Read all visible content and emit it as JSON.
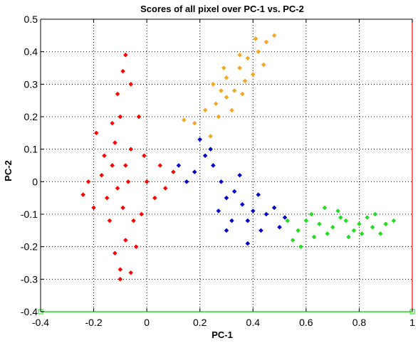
{
  "chart_data": {
    "type": "scatter",
    "title": "Scores of all pixel over PC-1 vs. PC-2",
    "xlabel": "PC-1",
    "ylabel": "PC-2",
    "xlim": [
      -0.4,
      1.0
    ],
    "ylim": [
      -0.4,
      0.5
    ],
    "x_ticks": [
      -0.4,
      -0.2,
      0,
      0.2,
      0.4,
      0.6,
      0.8,
      1
    ],
    "x_tick_labels": [
      "-0.4",
      "-0.2",
      "0",
      "0.2",
      "0.4",
      "0.6",
      "0.8",
      "1"
    ],
    "y_ticks": [
      -0.4,
      -0.3,
      -0.2,
      -0.1,
      0,
      0.1,
      0.2,
      0.3,
      0.4,
      0.5
    ],
    "y_tick_labels": [
      "-0.4",
      "-0.3",
      "-0.2",
      "-0.1",
      "0",
      "0.1",
      "0.2",
      "0.3",
      "0.4",
      "0.5"
    ],
    "grid": true,
    "marker": "diamond",
    "series": [
      {
        "color": "#ff0000",
        "points": [
          [
            -0.13,
            0.05
          ],
          [
            -0.11,
            -0.02
          ],
          [
            -0.09,
            -0.08
          ],
          [
            -0.12,
            0.12
          ],
          [
            -0.1,
            0.2
          ],
          [
            -0.14,
            -0.12
          ],
          [
            -0.08,
            -0.18
          ],
          [
            -0.16,
            0.08
          ],
          [
            -0.07,
            0.0
          ],
          [
            -0.11,
            0.27
          ],
          [
            -0.09,
            0.34
          ],
          [
            -0.12,
            -0.22
          ],
          [
            -0.1,
            -0.27
          ],
          [
            -0.15,
            -0.05
          ],
          [
            -0.06,
            0.1
          ],
          [
            -0.13,
            0.18
          ],
          [
            -0.08,
            0.05
          ],
          [
            -0.05,
            -0.12
          ],
          [
            -0.17,
            0.02
          ],
          [
            -0.2,
            -0.08
          ],
          [
            -0.22,
            0.0
          ],
          [
            -0.24,
            -0.04
          ],
          [
            -0.19,
            0.15
          ],
          [
            -0.04,
            -0.2
          ],
          [
            -0.02,
            -0.1
          ],
          [
            0.0,
            0.0
          ],
          [
            -0.01,
            0.08
          ],
          [
            0.03,
            -0.05
          ],
          [
            0.05,
            0.05
          ],
          [
            0.07,
            -0.02
          ],
          [
            0.1,
            0.03
          ],
          [
            -0.08,
            0.39
          ],
          [
            -0.06,
            0.3
          ],
          [
            -0.03,
            0.2
          ],
          [
            -0.1,
            -0.3
          ],
          [
            -0.06,
            -0.28
          ]
        ]
      },
      {
        "color": "#f5a623",
        "points": [
          [
            0.3,
            0.32
          ],
          [
            0.35,
            0.35
          ],
          [
            0.38,
            0.38
          ],
          [
            0.42,
            0.4
          ],
          [
            0.45,
            0.43
          ],
          [
            0.28,
            0.28
          ],
          [
            0.25,
            0.3
          ],
          [
            0.33,
            0.28
          ],
          [
            0.4,
            0.33
          ],
          [
            0.48,
            0.45
          ],
          [
            0.32,
            0.22
          ],
          [
            0.27,
            0.2
          ],
          [
            0.22,
            0.22
          ],
          [
            0.18,
            0.18
          ],
          [
            0.14,
            0.19
          ],
          [
            0.37,
            0.31
          ],
          [
            0.44,
            0.36
          ],
          [
            0.3,
            0.26
          ],
          [
            0.24,
            0.14
          ],
          [
            0.35,
            0.39
          ],
          [
            0.41,
            0.44
          ],
          [
            0.29,
            0.35
          ],
          [
            0.36,
            0.27
          ],
          [
            0.26,
            0.24
          ]
        ]
      },
      {
        "color": "#0000cc",
        "points": [
          [
            0.3,
            -0.05
          ],
          [
            0.33,
            -0.03
          ],
          [
            0.36,
            -0.07
          ],
          [
            0.28,
            0.0
          ],
          [
            0.25,
            0.05
          ],
          [
            0.4,
            -0.09
          ],
          [
            0.45,
            -0.1
          ],
          [
            0.38,
            -0.12
          ],
          [
            0.22,
            0.08
          ],
          [
            0.2,
            0.13
          ],
          [
            0.27,
            -0.09
          ],
          [
            0.32,
            -0.12
          ],
          [
            0.43,
            -0.15
          ],
          [
            0.48,
            -0.08
          ],
          [
            0.52,
            -0.11
          ],
          [
            0.18,
            0.03
          ],
          [
            0.15,
            0.0
          ],
          [
            0.35,
            0.02
          ],
          [
            0.42,
            -0.04
          ],
          [
            0.3,
            -0.15
          ],
          [
            0.38,
            -0.19
          ],
          [
            0.24,
            0.1
          ],
          [
            0.12,
            0.05
          ],
          [
            0.5,
            -0.14
          ]
        ]
      },
      {
        "color": "#22dd22",
        "points": [
          [
            0.6,
            -0.12
          ],
          [
            0.65,
            -0.13
          ],
          [
            0.7,
            -0.14
          ],
          [
            0.75,
            -0.12
          ],
          [
            0.8,
            -0.13
          ],
          [
            0.85,
            -0.14
          ],
          [
            0.9,
            -0.13
          ],
          [
            0.62,
            -0.1
          ],
          [
            0.68,
            -0.16
          ],
          [
            0.73,
            -0.11
          ],
          [
            0.78,
            -0.15
          ],
          [
            0.83,
            -0.11
          ],
          [
            0.88,
            -0.16
          ],
          [
            0.57,
            -0.15
          ],
          [
            0.55,
            -0.18
          ],
          [
            0.63,
            -0.17
          ],
          [
            0.72,
            -0.09
          ],
          [
            0.67,
            -0.08
          ],
          [
            0.58,
            -0.2
          ],
          [
            0.93,
            -0.12
          ],
          [
            0.76,
            -0.17
          ],
          [
            0.86,
            -0.1
          ],
          [
            0.53,
            -0.12
          ],
          [
            0.81,
            -0.16
          ]
        ]
      }
    ],
    "baseline": {
      "color": "#22dd22",
      "y": -0.4,
      "x_start": -0.4,
      "x_end": 1.0
    },
    "vertical_line": {
      "color": "#ff0000",
      "x": 1.0
    }
  }
}
